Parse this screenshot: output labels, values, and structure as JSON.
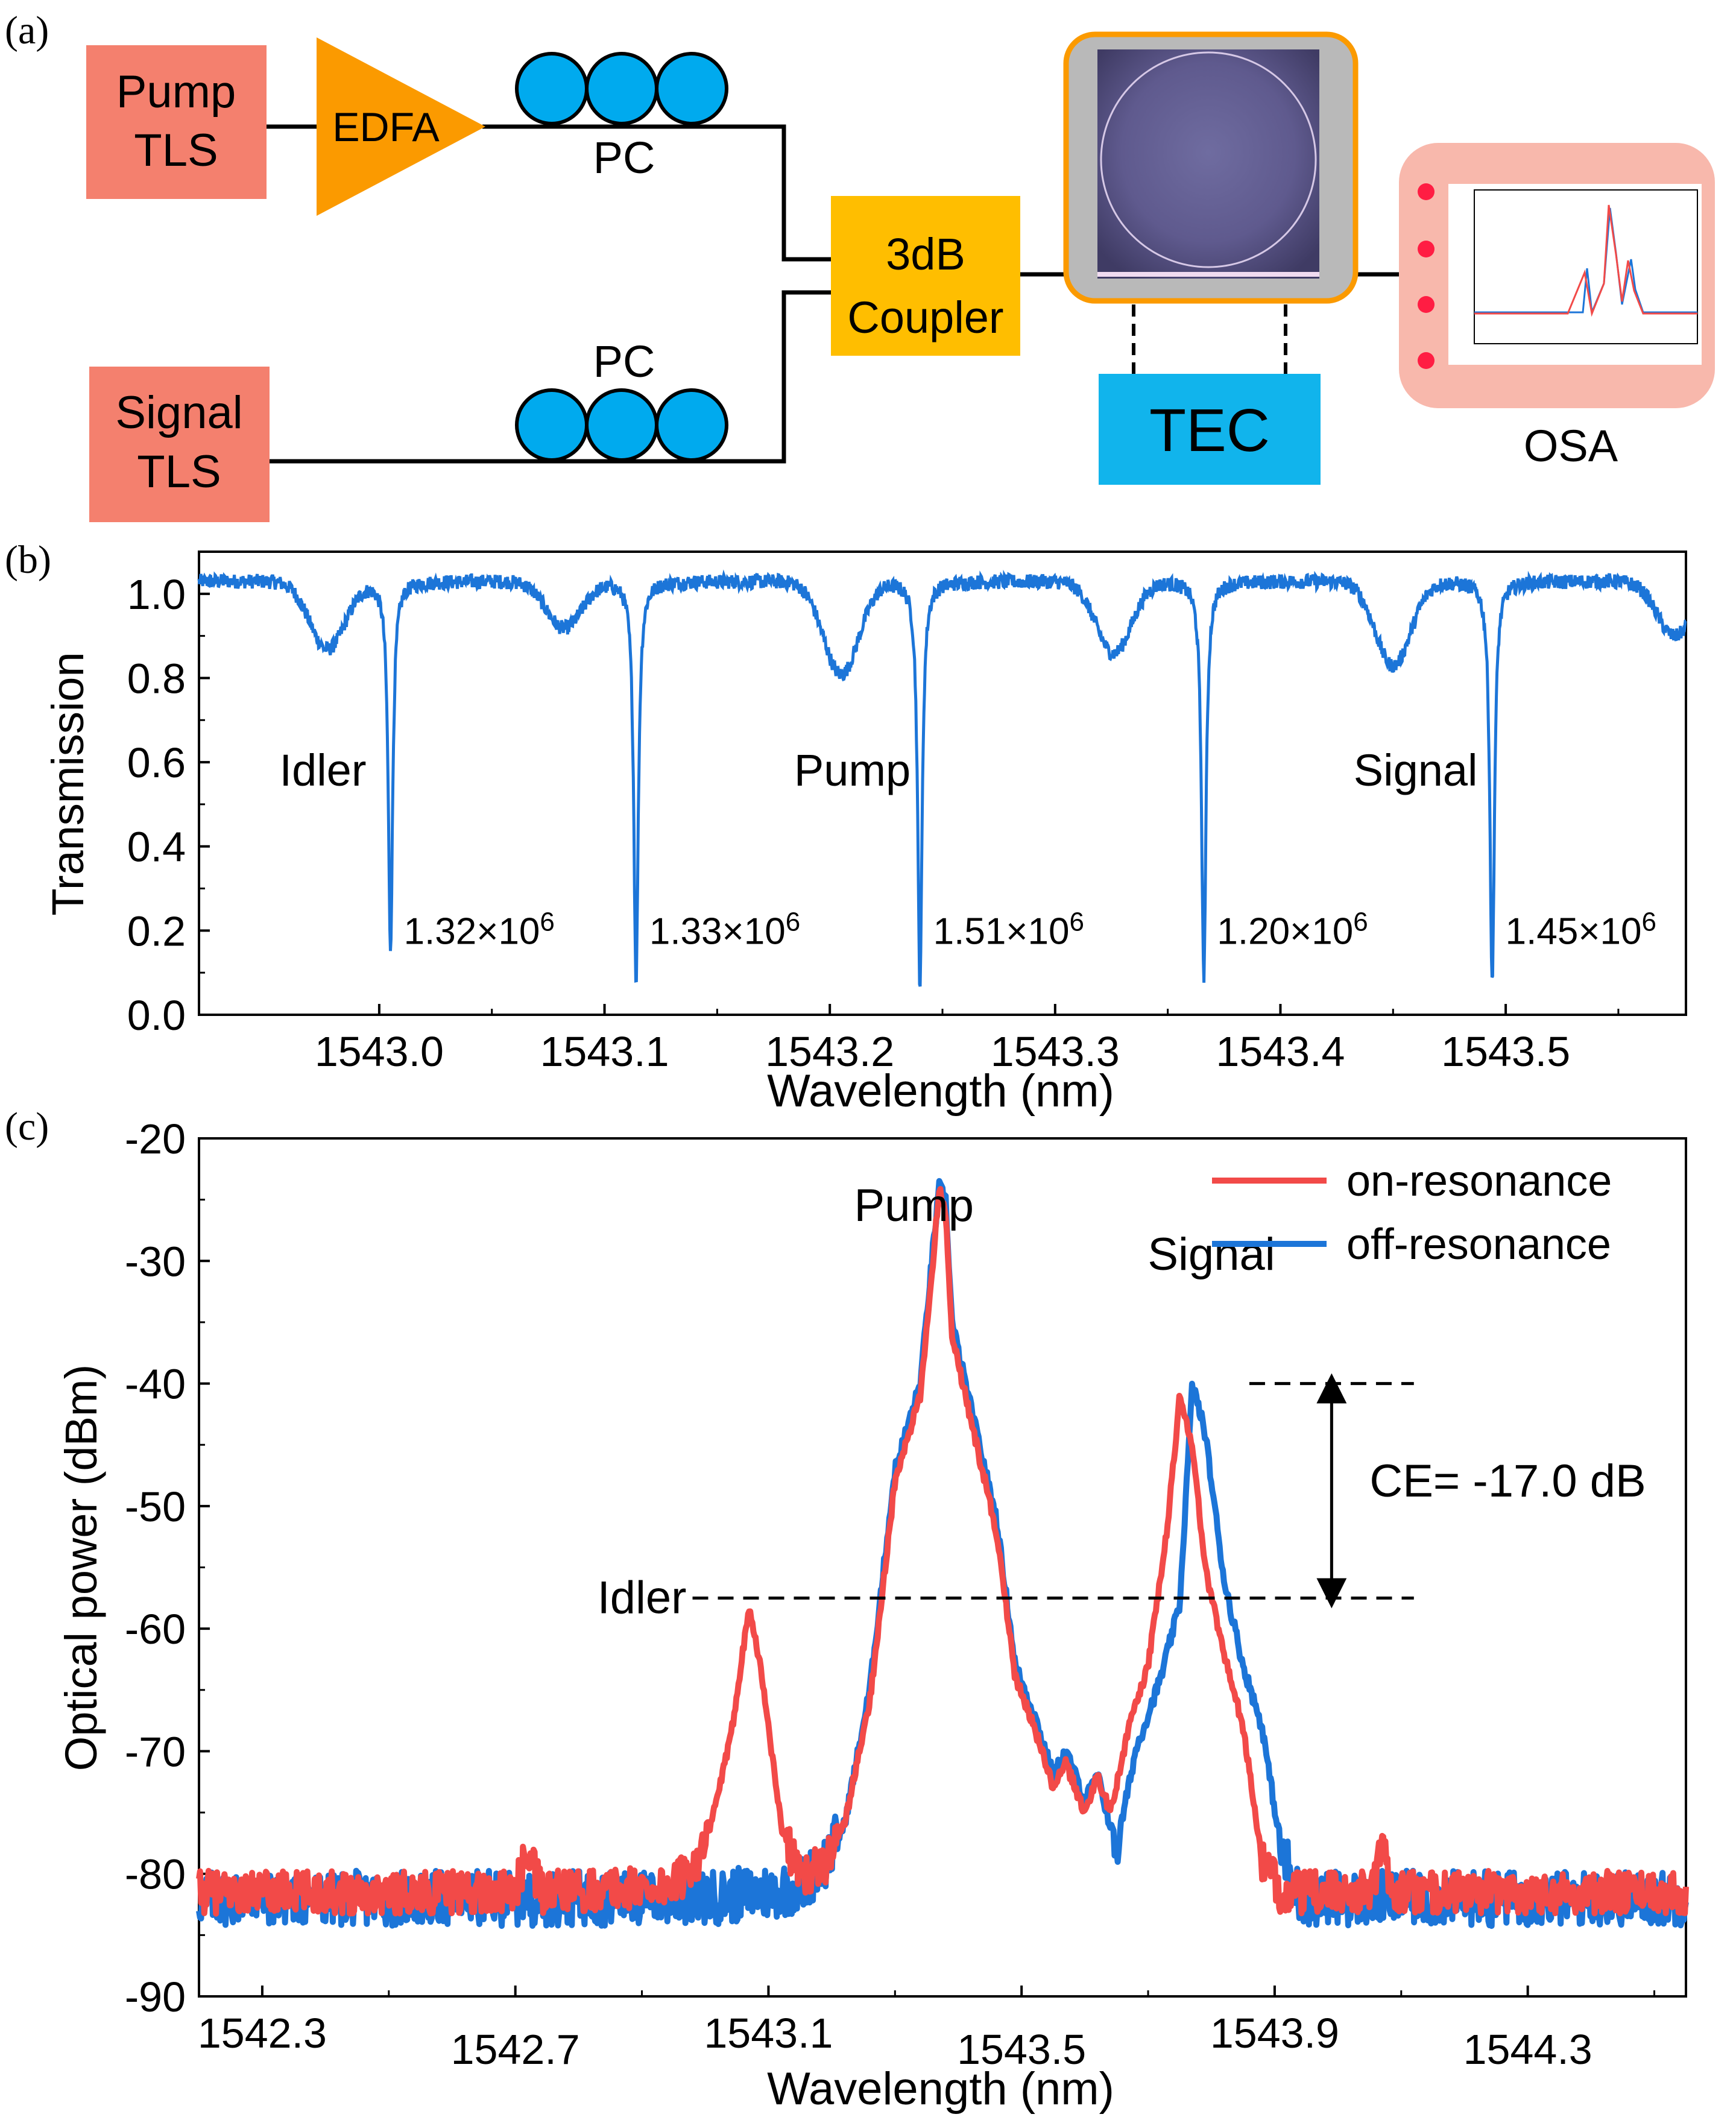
{
  "panel_labels": {
    "a": "(a)",
    "b": "(b)",
    "c": "(c)"
  },
  "setup": {
    "pump_tls": [
      "Pump",
      "TLS"
    ],
    "signal_tls": [
      "Signal",
      "TLS"
    ],
    "edfa": "EDFA",
    "pc_top": "PC",
    "pc_bottom": "PC",
    "coupler": [
      "3dB",
      "Coupler"
    ],
    "tec": "TEC",
    "osa": "OSA",
    "colors": {
      "tls": "#f4806e",
      "edfa": "#fb9a00",
      "pc": "#00aaee",
      "coupler": "#ffbe00",
      "chip_frame": "#fb9a00",
      "tec": "#11b4ec",
      "osa": "#f8b8ac"
    }
  },
  "chart_data": [
    {
      "type": "line",
      "panel": "(b)",
      "xlabel": "Wavelength (nm)",
      "ylabel": "Transmission",
      "xlim": [
        1542.92,
        1543.58
      ],
      "ylim": [
        0.0,
        1.1
      ],
      "xticks": [
        "1543.0",
        "1543.1",
        "1543.2",
        "1543.3",
        "1543.4",
        "1543.5"
      ],
      "xtick_values": [
        1543.0,
        1543.1,
        1543.2,
        1543.3,
        1543.4,
        1543.5
      ],
      "yticks": [
        "0.0",
        "0.2",
        "0.4",
        "0.6",
        "0.8",
        "1.0"
      ],
      "ytick_values": [
        0.0,
        0.2,
        0.4,
        0.6,
        0.8,
        1.0
      ],
      "series_color": "#1c75d8",
      "baseline": 1.03,
      "narrow_dips": [
        {
          "x": 1543.005,
          "min": 0.16,
          "label": "1.32×10",
          "exp": "6"
        },
        {
          "x": 1543.114,
          "min": 0.08,
          "label": "1.33×10",
          "exp": "6"
        },
        {
          "x": 1543.24,
          "min": 0.07,
          "label": "1.51×10",
          "exp": "6"
        },
        {
          "x": 1543.366,
          "min": 0.09,
          "label": "1.20×10",
          "exp": "6"
        },
        {
          "x": 1543.494,
          "min": 0.07,
          "label": "1.45×10",
          "exp": "6"
        }
      ],
      "broad_dips": [
        {
          "x": 1542.977,
          "min": 0.87
        },
        {
          "x": 1543.082,
          "min": 0.92
        },
        {
          "x": 1543.205,
          "min": 0.81
        },
        {
          "x": 1543.326,
          "min": 0.86
        },
        {
          "x": 1543.45,
          "min": 0.83
        },
        {
          "x": 1543.575,
          "min": 0.9
        }
      ],
      "annotations": [
        {
          "text": "Idler",
          "x": 1542.975,
          "y": 0.58
        },
        {
          "text": "Pump",
          "x": 1543.21,
          "y": 0.58
        },
        {
          "text": "Signal",
          "x": 1543.46,
          "y": 0.58
        }
      ]
    },
    {
      "type": "line",
      "panel": "(c)",
      "xlabel": "Wavelength (nm)",
      "ylabel": "Optical power (dBm)",
      "xlim": [
        1542.2,
        1544.55
      ],
      "ylim": [
        -90,
        -20
      ],
      "xticks": [
        "1542.3",
        "1542.7",
        "1543.1",
        "1543.5",
        "1543.9",
        "1544.3"
      ],
      "xtick_values": [
        1542.3,
        1542.7,
        1543.1,
        1543.5,
        1543.9,
        1544.3
      ],
      "yticks": [
        "-20",
        "-30",
        "-40",
        "-50",
        "-60",
        "-70",
        "-80",
        "-90"
      ],
      "ytick_values": [
        -20,
        -30,
        -40,
        -50,
        -60,
        -70,
        -80,
        -90
      ],
      "series": [
        {
          "name": "on-resonance",
          "color": "#f24a48",
          "points": [
            [
              1542.2,
              -81.5
            ],
            [
              1542.7,
              -81.5
            ],
            [
              1542.72,
              -78
            ],
            [
              1542.74,
              -81.5
            ],
            [
              1542.95,
              -81
            ],
            [
              1543.0,
              -78
            ],
            [
              1543.04,
              -69
            ],
            [
              1543.07,
              -58
            ],
            [
              1543.09,
              -64
            ],
            [
              1543.12,
              -76
            ],
            [
              1543.15,
              -80.5
            ],
            [
              1543.19,
              -79
            ],
            [
              1543.22,
              -76
            ],
            [
              1543.26,
              -66
            ],
            [
              1543.3,
              -48
            ],
            [
              1543.34,
              -41
            ],
            [
              1543.36,
              -30
            ],
            [
              1543.37,
              -24
            ],
            [
              1543.38,
              -26
            ],
            [
              1543.39,
              -36
            ],
            [
              1543.42,
              -43
            ],
            [
              1543.46,
              -52
            ],
            [
              1543.49,
              -64
            ],
            [
              1543.52,
              -68
            ],
            [
              1543.55,
              -73
            ],
            [
              1543.57,
              -71
            ],
            [
              1543.6,
              -75
            ],
            [
              1543.62,
              -72
            ],
            [
              1543.64,
              -75
            ],
            [
              1543.67,
              -68
            ],
            [
              1543.7,
              -63
            ],
            [
              1543.73,
              -52
            ],
            [
              1543.75,
              -41
            ],
            [
              1543.77,
              -45
            ],
            [
              1543.79,
              -55
            ],
            [
              1543.82,
              -62
            ],
            [
              1543.85,
              -68
            ],
            [
              1543.88,
              -79
            ],
            [
              1543.91,
              -81.5
            ],
            [
              1544.05,
              -81.5
            ],
            [
              1544.07,
              -78
            ],
            [
              1544.09,
              -81.5
            ],
            [
              1544.55,
              -81.5
            ]
          ]
        },
        {
          "name": "off-resonance",
          "color": "#1c75d8",
          "points": [
            [
              1542.2,
              -82
            ],
            [
              1543.0,
              -82
            ],
            [
              1543.1,
              -81.5
            ],
            [
              1543.15,
              -81
            ],
            [
              1543.19,
              -79
            ],
            [
              1543.22,
              -76
            ],
            [
              1543.26,
              -65
            ],
            [
              1543.3,
              -47
            ],
            [
              1543.34,
              -40
            ],
            [
              1543.36,
              -29
            ],
            [
              1543.37,
              -24
            ],
            [
              1543.38,
              -25
            ],
            [
              1543.39,
              -35
            ],
            [
              1543.42,
              -42
            ],
            [
              1543.46,
              -51
            ],
            [
              1543.49,
              -63
            ],
            [
              1543.52,
              -67
            ],
            [
              1543.55,
              -72
            ],
            [
              1543.57,
              -70
            ],
            [
              1543.6,
              -74
            ],
            [
              1543.62,
              -72
            ],
            [
              1543.65,
              -78
            ],
            [
              1543.68,
              -70
            ],
            [
              1543.72,
              -64
            ],
            [
              1543.75,
              -58
            ],
            [
              1543.77,
              -40
            ],
            [
              1543.79,
              -44
            ],
            [
              1543.82,
              -56
            ],
            [
              1543.85,
              -63
            ],
            [
              1543.88,
              -68
            ],
            [
              1543.91,
              -78
            ],
            [
              1543.94,
              -82
            ],
            [
              1544.55,
              -82
            ]
          ]
        }
      ],
      "annotations": [
        {
          "text": "Pump",
          "x": 1543.33,
          "y": -25.5
        },
        {
          "text": "Signal",
          "x": 1543.8,
          "y": -29.5
        },
        {
          "text": "Idler",
          "x": 1542.9,
          "y": -57.5
        },
        {
          "text": "CE= -17.0 dB",
          "x": 1544.12,
          "y": -48
        }
      ],
      "ce_levels": {
        "top": -40,
        "bottom": -57.5
      },
      "legend": "top-right"
    }
  ]
}
